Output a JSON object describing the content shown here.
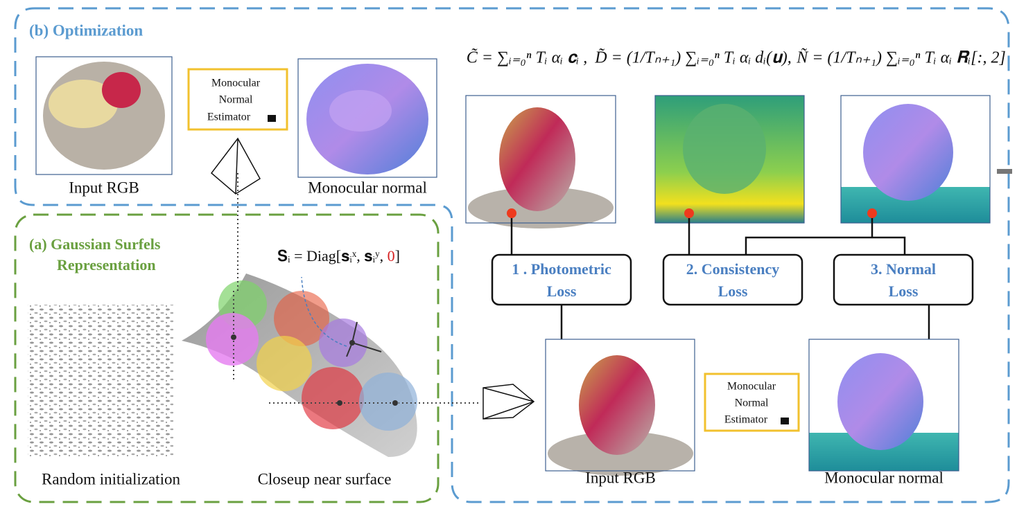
{
  "optimization": {
    "title": "(b) Optimization",
    "input_caption": "Input RGB",
    "normal_caption": "Monocular normal",
    "estimator": [
      "Monocular",
      "Normal",
      "Estimator"
    ]
  },
  "equations": [
    "C̃ = ∑ᵢ₌₀ⁿ Tᵢ αᵢ 𝐜ᵢ ,",
    "D̃ = (1/Tₙ₊₁) ∑ᵢ₌₀ⁿ Tᵢ αᵢ dᵢ(𝐮),",
    "Ñ = (1/Tₙ₊₁) ∑ᵢ₌₀ⁿ Tᵢ αᵢ 𝐑ᵢ[:, 2]"
  ],
  "losses": [
    [
      "1 . Photometric",
      "Loss"
    ],
    [
      "2. Consistency",
      "Loss"
    ],
    [
      "3. Normal",
      "Loss"
    ]
  ],
  "representation": {
    "title": [
      "(a) Gaussian Surfels",
      "Representation"
    ],
    "formula": [
      "𝐒ᵢ = Diag[𝐬ᵢˣ, 𝐬ᵢʸ, ",
      "0",
      "]"
    ],
    "random_caption": "Random initialization",
    "closeup_caption": "Closeup near surface"
  }
}
